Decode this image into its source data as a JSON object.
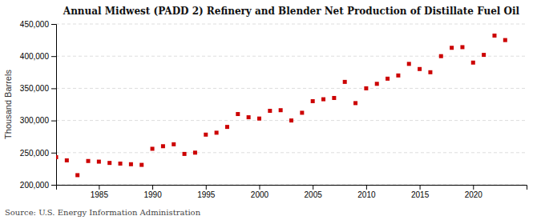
{
  "chart_data": {
    "type": "scatter",
    "title": "Annual Midwest (PADD 2) Refinery and Blender Net Production of Distillate Fuel Oil",
    "ylabel": "Thousand Barrels",
    "annotations": [
      "Source: U.S. Energy Information Administration"
    ],
    "color": "#cc0000",
    "marker": "square",
    "grid": true,
    "xlim": [
      1981,
      2025
    ],
    "xticks": [
      1985,
      1990,
      1995,
      2000,
      2005,
      2010,
      2015,
      2020
    ],
    "ylim": [
      200000,
      450000
    ],
    "yticks": [
      {
        "value": 200000,
        "label": "200,000"
      },
      {
        "value": 250000,
        "label": "250,000"
      },
      {
        "value": 300000,
        "label": "300,000"
      },
      {
        "value": 350000,
        "label": "350,000"
      },
      {
        "value": 400000,
        "label": "400,000"
      },
      {
        "value": 450000,
        "label": "450,000"
      }
    ],
    "x": [
      1981,
      1982,
      1983,
      1984,
      1985,
      1986,
      1987,
      1988,
      1989,
      1990,
      1991,
      1992,
      1993,
      1994,
      1995,
      1996,
      1997,
      1998,
      1999,
      2000,
      2001,
      2002,
      2003,
      2004,
      2005,
      2006,
      2007,
      2008,
      2009,
      2010,
      2011,
      2012,
      2013,
      2014,
      2015,
      2016,
      2017,
      2018,
      2019,
      2020,
      2021,
      2022,
      2023
    ],
    "values": [
      243000,
      238000,
      215000,
      237000,
      236000,
      234000,
      233000,
      232000,
      231000,
      256000,
      260000,
      263000,
      248000,
      250000,
      278000,
      281000,
      290000,
      310000,
      305000,
      303000,
      315000,
      316000,
      300000,
      312000,
      330000,
      333000,
      335000,
      360000,
      327000,
      350000,
      357000,
      365000,
      370000,
      388000,
      380000,
      375000,
      400000,
      413000,
      414000,
      390000,
      402000,
      432000,
      425000
    ]
  }
}
